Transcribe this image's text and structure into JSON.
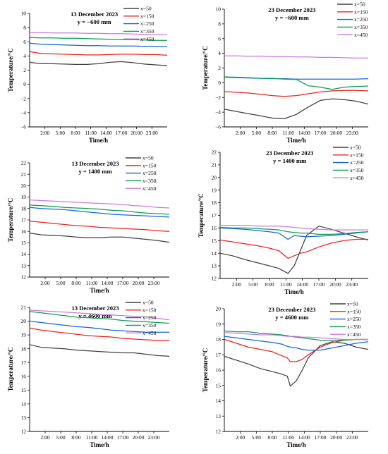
{
  "figure": {
    "colors": {
      "x=50": "#404040",
      "x=150": "#e8231b",
      "x=250": "#1565d8",
      "x=350": "#0b9c55",
      "x=450": "#c77dd8"
    }
  },
  "chart_data": [
    {
      "type": "line",
      "title": "13 December 2023",
      "subtitle": "y = −600 mm",
      "xlabel": "Time/h",
      "ylabel": "Temperature/°C",
      "xticks": [
        "2:00",
        "5:00",
        "8:00",
        "11:00",
        "14:00",
        "17:00",
        "20:00",
        "23:00"
      ],
      "xlim": [
        0,
        24
      ],
      "ylim": [
        -6,
        10
      ],
      "yticks": [
        -6,
        -4,
        -2,
        0,
        2,
        4,
        6,
        8,
        10
      ],
      "legend": "top-right",
      "x": [
        0,
        2,
        4,
        6,
        8,
        10,
        12,
        14,
        16,
        18,
        20,
        22,
        24
      ],
      "series": [
        {
          "name": "x=50",
          "values": [
            3.1,
            2.9,
            2.9,
            2.85,
            2.8,
            2.8,
            2.9,
            3.1,
            3.2,
            3.05,
            2.85,
            2.75,
            2.65
          ]
        },
        {
          "name": "x=150",
          "values": [
            4.6,
            4.35,
            4.3,
            4.25,
            4.2,
            4.15,
            4.15,
            4.2,
            4.25,
            4.25,
            4.2,
            4.2,
            4.1
          ]
        },
        {
          "name": "x=250",
          "values": [
            5.8,
            5.65,
            5.6,
            5.55,
            5.5,
            5.45,
            5.45,
            5.4,
            5.4,
            5.4,
            5.35,
            5.35,
            5.3
          ]
        },
        {
          "name": "x=350",
          "values": [
            6.6,
            6.55,
            6.55,
            6.5,
            6.5,
            6.45,
            6.4,
            6.35,
            6.3,
            6.3,
            6.25,
            6.2,
            6.2
          ]
        },
        {
          "name": "x=450",
          "values": [
            7.3,
            7.3,
            7.25,
            7.25,
            7.25,
            7.2,
            7.2,
            7.15,
            7.15,
            7.1,
            7.05,
            7.0,
            7.0
          ]
        }
      ]
    },
    {
      "type": "line",
      "title": "23 December 2023",
      "subtitle": "y = −600 mm",
      "xlabel": "Time/h",
      "ylabel": "Temperature/°C",
      "xticks": [
        "2:00",
        "5:00",
        "8:00",
        "11:00",
        "14:00",
        "17:00",
        "20:00",
        "23:00"
      ],
      "xlim": [
        0,
        24
      ],
      "ylim": [
        -6,
        10
      ],
      "yticks": [
        -6,
        -4,
        -2,
        0,
        2,
        4,
        6,
        8,
        10
      ],
      "legend": "top-right",
      "x": [
        0,
        2,
        4,
        6,
        8,
        10,
        12,
        14,
        16,
        18,
        20,
        22,
        24
      ],
      "series": [
        {
          "name": "x=50",
          "values": [
            -3.6,
            -3.9,
            -4.2,
            -4.5,
            -4.8,
            -4.9,
            -4.3,
            -3.3,
            -2.4,
            -2.2,
            -2.3,
            -2.5,
            -2.9
          ]
        },
        {
          "name": "x=150",
          "values": [
            -1.2,
            -1.3,
            -1.4,
            -1.55,
            -1.75,
            -1.85,
            -1.75,
            -1.5,
            -1.25,
            -1.1,
            -1.05,
            -1.05,
            -1.1
          ]
        },
        {
          "name": "x=250",
          "values": [
            0.75,
            0.7,
            0.65,
            0.6,
            0.55,
            0.55,
            0.5,
            0.5,
            0.5,
            0.5,
            0.5,
            0.5,
            0.55
          ]
        },
        {
          "name": "x=350",
          "values": [
            0.8,
            0.75,
            0.7,
            0.6,
            0.6,
            0.5,
            0.45,
            -0.4,
            -0.6,
            -0.9,
            -0.6,
            -0.5,
            -0.45
          ]
        },
        {
          "name": "x=450",
          "values": [
            3.65,
            3.65,
            3.6,
            3.6,
            3.55,
            3.55,
            3.5,
            3.5,
            3.45,
            3.45,
            3.4,
            3.35,
            3.35
          ]
        }
      ]
    },
    {
      "type": "line",
      "title": "13 December 2023",
      "subtitle": "y = 1400 mm",
      "xlabel": "Time/h",
      "ylabel": "Temperature/°C",
      "xticks": [
        "2:00",
        "5:00",
        "8:00",
        "11:00",
        "14:00",
        "17:00",
        "20:00",
        "23:00"
      ],
      "xlim": [
        0,
        24
      ],
      "ylim": [
        12,
        22
      ],
      "yticks": [
        12,
        13,
        14,
        15,
        16,
        17,
        18,
        19,
        20,
        21,
        22
      ],
      "legend": "top-right",
      "x": [
        0,
        2,
        4,
        6,
        8,
        10,
        12,
        14,
        16,
        18,
        20,
        22,
        24
      ],
      "series": [
        {
          "name": "x=50",
          "values": [
            15.85,
            15.7,
            15.65,
            15.6,
            15.5,
            15.45,
            15.45,
            15.5,
            15.5,
            15.4,
            15.3,
            15.2,
            15.05
          ]
        },
        {
          "name": "x=150",
          "values": [
            16.9,
            16.8,
            16.7,
            16.6,
            16.5,
            16.45,
            16.35,
            16.3,
            16.25,
            16.2,
            16.15,
            16.05,
            16.0
          ]
        },
        {
          "name": "x=250",
          "values": [
            18.1,
            18.0,
            17.95,
            17.9,
            17.8,
            17.7,
            17.6,
            17.5,
            17.45,
            17.4,
            17.35,
            17.3,
            17.25
          ]
        },
        {
          "name": "x=350",
          "values": [
            18.3,
            18.25,
            18.2,
            18.1,
            18.05,
            18.0,
            17.95,
            17.85,
            17.8,
            17.7,
            17.6,
            17.55,
            17.5
          ]
        },
        {
          "name": "x=450",
          "values": [
            18.75,
            18.7,
            18.65,
            18.6,
            18.55,
            18.5,
            18.45,
            18.4,
            18.35,
            18.25,
            18.2,
            18.1,
            18.05
          ]
        }
      ]
    },
    {
      "type": "line",
      "title": "23 December 2023",
      "subtitle": "y = 1400 mm",
      "xlabel": "Time/h",
      "ylabel": "Temperature/°C",
      "xticks": [
        "2:00",
        "5:00",
        "8:00",
        "11:00",
        "14:00",
        "17:00",
        "20:00",
        "23:00"
      ],
      "xlim": [
        0,
        24
      ],
      "ylim": [
        12,
        22
      ],
      "yticks": [
        12,
        13,
        14,
        15,
        16,
        17,
        18,
        19,
        20,
        21,
        22
      ],
      "legend": "top-right",
      "x": [
        0,
        2,
        4,
        6,
        8,
        9.5,
        11,
        12,
        13,
        14,
        16,
        18,
        20,
        22,
        24
      ],
      "series": [
        {
          "name": "x=50",
          "values": [
            14.0,
            13.8,
            13.5,
            13.25,
            13.0,
            12.8,
            12.4,
            13.0,
            14.2,
            15.4,
            16.15,
            15.9,
            15.6,
            15.3,
            15.05
          ]
        },
        {
          "name": "x=150",
          "values": [
            15.05,
            14.9,
            14.75,
            14.6,
            14.4,
            14.2,
            13.6,
            13.8,
            14.0,
            14.1,
            14.5,
            14.8,
            15.0,
            15.1,
            15.1
          ]
        },
        {
          "name": "x=250",
          "values": [
            16.0,
            15.95,
            15.9,
            15.8,
            15.7,
            15.6,
            15.1,
            15.4,
            15.35,
            15.3,
            15.35,
            15.4,
            15.5,
            15.6,
            15.7
          ]
        },
        {
          "name": "x=350",
          "values": [
            16.05,
            16.0,
            16.0,
            15.95,
            15.9,
            15.85,
            15.7,
            15.65,
            15.6,
            15.6,
            15.5,
            15.5,
            15.55,
            15.65,
            15.7
          ]
        },
        {
          "name": "x=450",
          "values": [
            16.2,
            16.2,
            16.2,
            16.15,
            16.15,
            16.15,
            16.1,
            16.05,
            16.0,
            15.95,
            15.9,
            15.85,
            15.85,
            15.85,
            15.85
          ]
        }
      ]
    },
    {
      "type": "line",
      "title": "13 December 2023",
      "subtitle": "y = 4600 mm",
      "xlabel": "Time/h",
      "ylabel": "Temperature/°C",
      "xticks": [
        "2:00",
        "5:00",
        "8:00",
        "11:00",
        "14:00",
        "17:00",
        "20:00",
        "23:00"
      ],
      "xlim": [
        0,
        24
      ],
      "ylim": [
        12,
        21
      ],
      "yticks": [
        12,
        13,
        14,
        15,
        16,
        17,
        18,
        19,
        20,
        21
      ],
      "legend": "top-right",
      "x": [
        0,
        2,
        4,
        6,
        8,
        10,
        12,
        14,
        16,
        18,
        20,
        22,
        24
      ],
      "series": [
        {
          "name": "x=50",
          "values": [
            18.3,
            18.1,
            18.05,
            18.0,
            17.9,
            17.85,
            17.8,
            17.75,
            17.7,
            17.7,
            17.6,
            17.5,
            17.45
          ]
        },
        {
          "name": "x=150",
          "values": [
            19.5,
            19.35,
            19.25,
            19.15,
            19.05,
            18.95,
            18.9,
            18.85,
            18.75,
            18.7,
            18.65,
            18.6,
            18.6
          ]
        },
        {
          "name": "x=250",
          "values": [
            20.0,
            19.9,
            19.8,
            19.7,
            19.6,
            19.55,
            19.45,
            19.35,
            19.3,
            19.25,
            19.2,
            19.2,
            19.2
          ]
        },
        {
          "name": "x=350",
          "values": [
            20.7,
            20.6,
            20.5,
            20.4,
            20.3,
            20.25,
            20.2,
            20.15,
            20.05,
            20.0,
            19.95,
            19.9,
            19.85
          ]
        },
        {
          "name": "x=450",
          "values": [
            20.8,
            20.75,
            20.7,
            20.65,
            20.6,
            20.55,
            20.5,
            20.45,
            20.4,
            20.35,
            20.3,
            20.2,
            20.1
          ]
        }
      ]
    },
    {
      "type": "line",
      "title": "23 December 2023",
      "subtitle": "y = 4600 mm",
      "xlabel": "Time/h",
      "ylabel": "Temperature/°C",
      "xticks": [
        "2:00",
        "5:00",
        "8:00",
        "11:00",
        "14:00",
        "17:00",
        "20:00",
        "23:00"
      ],
      "xlim": [
        0,
        24
      ],
      "ylim": [
        12,
        20
      ],
      "yticks": [
        12,
        13,
        14,
        15,
        16,
        17,
        18,
        19,
        20
      ],
      "legend": "top-right",
      "x": [
        0,
        2,
        4,
        6,
        8,
        9.5,
        10.5,
        11,
        12,
        13,
        14,
        16,
        18,
        20,
        22,
        24
      ],
      "series": [
        {
          "name": "x=50",
          "values": [
            16.9,
            16.65,
            16.4,
            16.1,
            15.9,
            15.75,
            15.6,
            14.95,
            15.3,
            16.0,
            16.8,
            17.6,
            17.85,
            17.75,
            17.5,
            17.35
          ]
        },
        {
          "name": "x=150",
          "values": [
            18.0,
            17.75,
            17.5,
            17.35,
            17.2,
            16.95,
            16.8,
            16.55,
            16.55,
            16.7,
            17.0,
            17.5,
            17.8,
            17.95,
            18.0,
            18.0
          ]
        },
        {
          "name": "x=250",
          "values": [
            18.2,
            18.1,
            18.0,
            17.9,
            17.8,
            17.7,
            17.55,
            17.5,
            17.45,
            17.35,
            17.3,
            17.3,
            17.45,
            17.6,
            17.75,
            17.85
          ]
        },
        {
          "name": "x=350",
          "values": [
            18.55,
            18.5,
            18.5,
            18.4,
            18.35,
            18.3,
            18.25,
            18.2,
            18.15,
            18.1,
            18.05,
            17.95,
            17.95,
            17.95,
            18.0,
            18.0
          ]
        },
        {
          "name": "x=450",
          "values": [
            18.45,
            18.4,
            18.35,
            18.3,
            18.3,
            18.25,
            18.2,
            18.2,
            18.2,
            18.15,
            18.15,
            18.1,
            18.05,
            18.0,
            18.0,
            18.0
          ]
        }
      ]
    }
  ]
}
